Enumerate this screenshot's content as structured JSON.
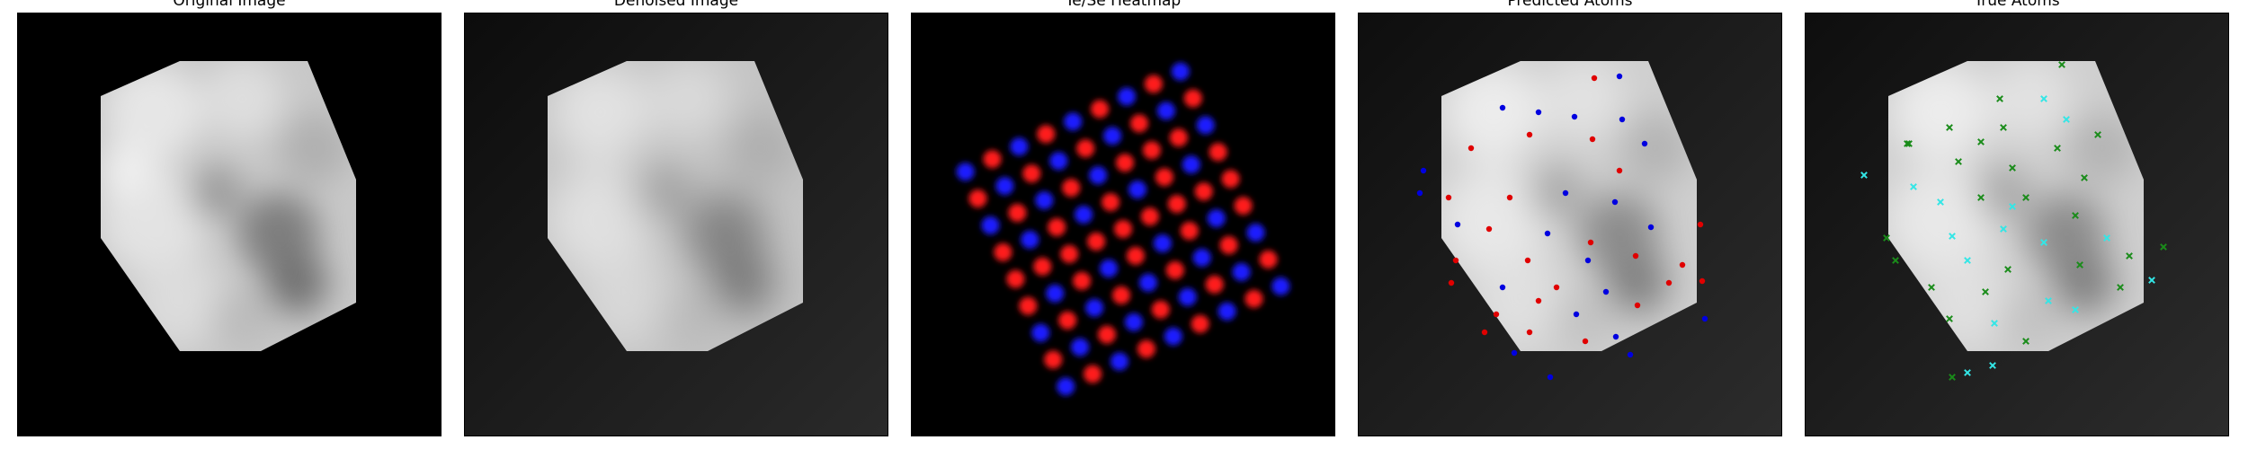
{
  "panels": [
    {
      "id": "original",
      "title": "Original Image"
    },
    {
      "id": "denoised",
      "title": "Denoised Image"
    },
    {
      "id": "heatmap",
      "title": "Te/Se Heatmap"
    },
    {
      "id": "predicted",
      "title": "Predicted Atoms"
    },
    {
      "id": "true",
      "title": "True Atoms"
    }
  ],
  "colors": {
    "background": "#000000",
    "flake_light": "#d9d9d9",
    "flake_dark": "#7a7a7a",
    "te": "#ff1a1a",
    "se": "#1a1aff",
    "true_te": "#1a8c1a",
    "true_se": "#33e6e6"
  },
  "icons": {
    "predicted_marker": "dot",
    "true_marker": "x-cross"
  }
}
